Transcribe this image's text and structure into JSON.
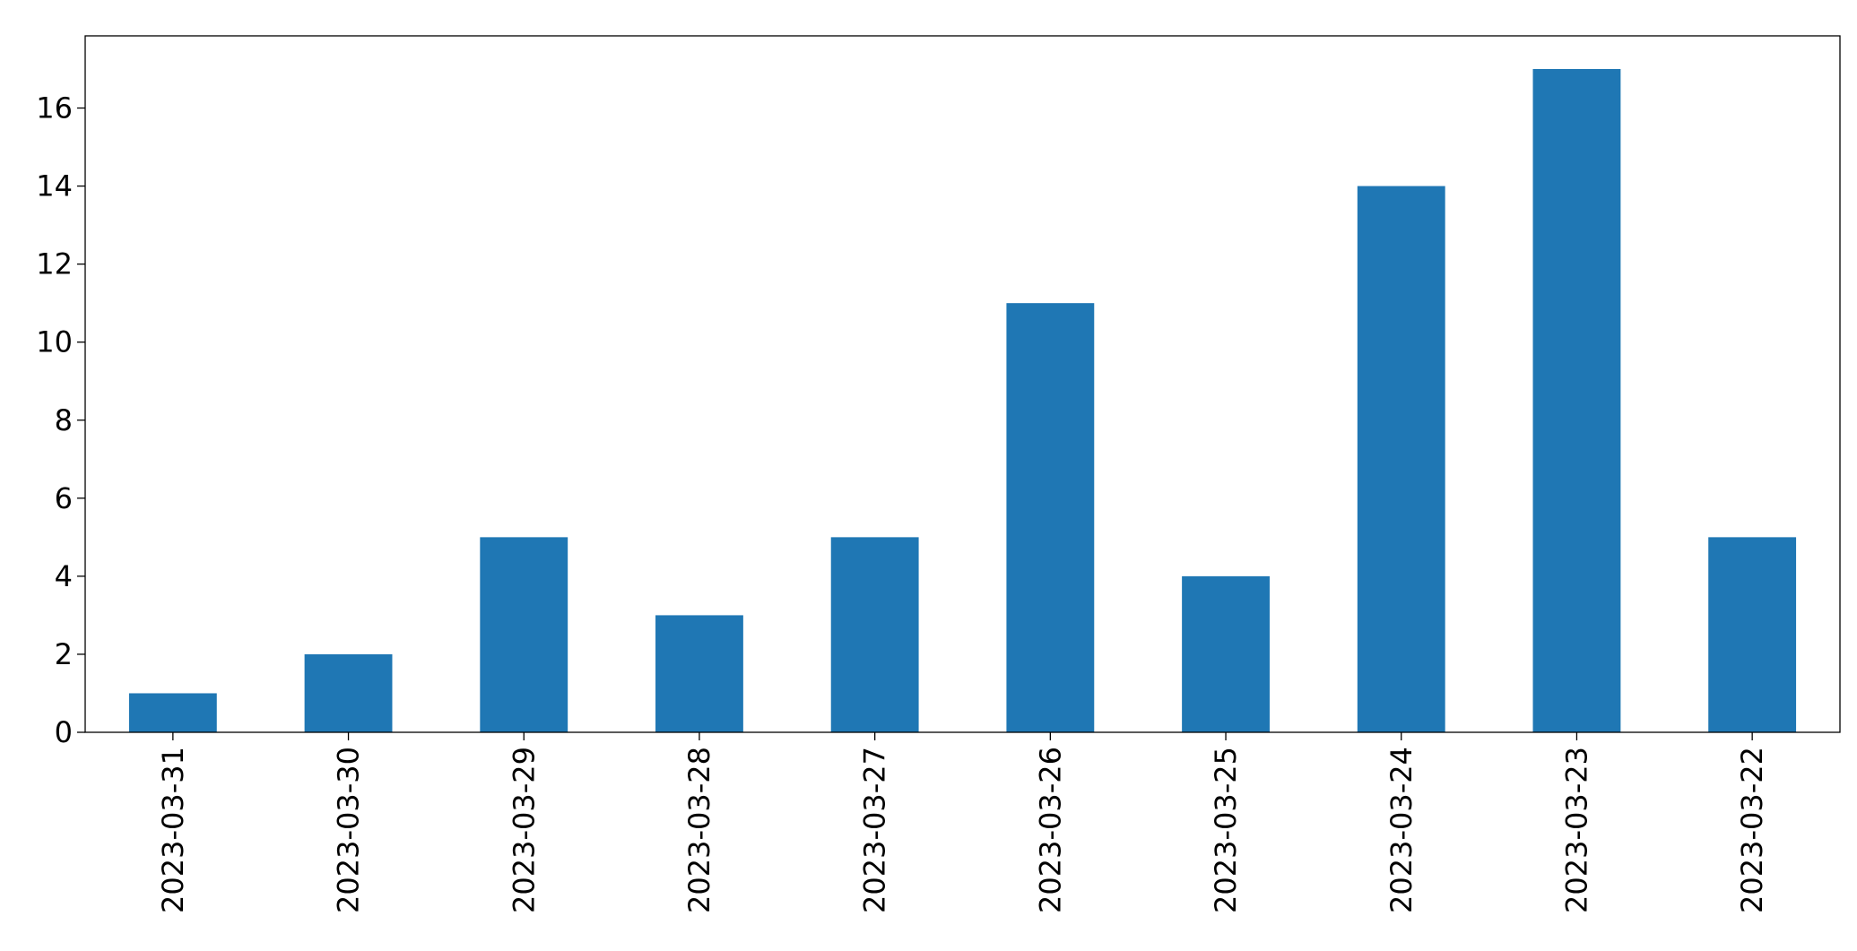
{
  "chart_data": {
    "type": "bar",
    "categories": [
      "2023-03-31",
      "2023-03-30",
      "2023-03-29",
      "2023-03-28",
      "2023-03-27",
      "2023-03-26",
      "2023-03-25",
      "2023-03-24",
      "2023-03-23",
      "2023-03-22"
    ],
    "values": [
      1,
      2,
      5,
      3,
      5,
      11,
      4,
      14,
      17,
      5
    ],
    "color": "#1f77b4",
    "ylim": [
      0,
      17.85
    ],
    "yticks": [
      0,
      2,
      4,
      6,
      8,
      10,
      12,
      14,
      16
    ],
    "grid": false
  }
}
